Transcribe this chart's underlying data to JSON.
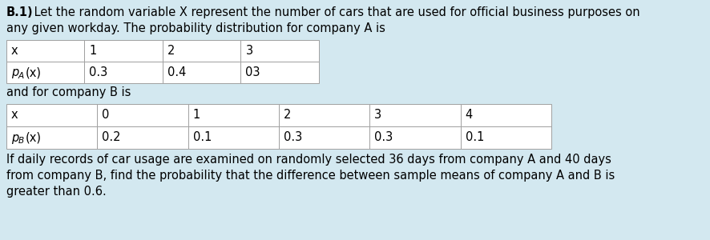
{
  "background_color": "#d3e8f0",
  "text_color": "#000000",
  "table_bg": "#ffffff",
  "table_border": "#a0a0a0",
  "font_size": 10.5,
  "table_a_headers": [
    "x",
    "1",
    "2",
    "3"
  ],
  "table_a_row": [
    "pA(x)",
    "0.3",
    "0.4",
    "03"
  ],
  "table_b_headers": [
    "x",
    "0",
    "1",
    "2",
    "3",
    "4"
  ],
  "table_b_row": [
    "pB(x)",
    "0.2",
    "0.1",
    "0.3",
    "0.3",
    "0.1"
  ],
  "line1_bold": "B.1)",
  "line1_rest": " Let the random variable X represent the number of cars that are used for official business purposes on",
  "line2": "any given workday. The probability distribution for company A is",
  "between_text": "and for company B is",
  "footer_line1": "If daily records of car usage are examined on randomly selected 36 days from company A and 40 days",
  "footer_line2": "from company B, find the probability that the difference between sample means of company A and B is",
  "footer_line3": "greater than 0.6."
}
